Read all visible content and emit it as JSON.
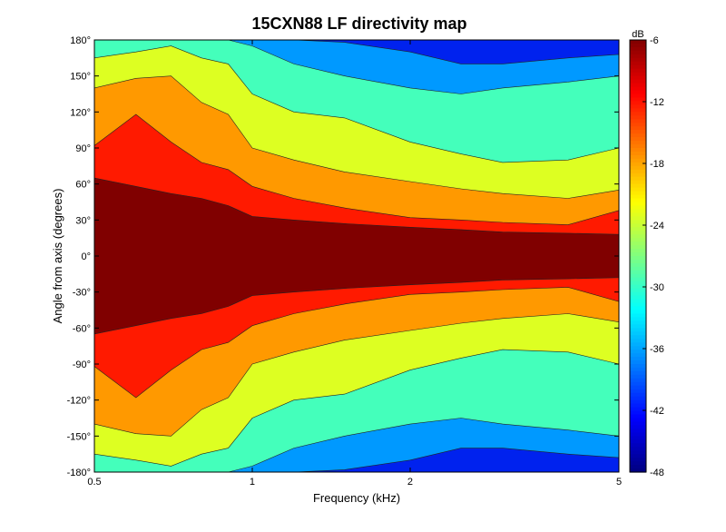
{
  "chart_data": {
    "type": "heatmap",
    "title": "15CXN88 LF directivity map",
    "xlabel": "Frequency (kHz)",
    "ylabel": "Angle from axis (degrees)",
    "x_scale": "log",
    "xlim": [
      0.5,
      5
    ],
    "ylim": [
      -180,
      180
    ],
    "x_ticks": [
      {
        "value": 0.5,
        "label": "0.5"
      },
      {
        "value": 1,
        "label": "1"
      },
      {
        "value": 2,
        "label": "2"
      },
      {
        "value": 5,
        "label": "5"
      }
    ],
    "y_ticks": [
      {
        "value": 180,
        "label": "180°"
      },
      {
        "value": 150,
        "label": "150°"
      },
      {
        "value": 120,
        "label": "120°"
      },
      {
        "value": 90,
        "label": "90°"
      },
      {
        "value": 60,
        "label": "60°"
      },
      {
        "value": 30,
        "label": "30°"
      },
      {
        "value": 0,
        "label": "0°"
      },
      {
        "value": -30,
        "label": "-30°"
      },
      {
        "value": -60,
        "label": "-60°"
      },
      {
        "value": -90,
        "label": "-90°"
      },
      {
        "value": -120,
        "label": "-120°"
      },
      {
        "value": -150,
        "label": "-150°"
      },
      {
        "value": -180,
        "label": "-180°"
      }
    ],
    "colorbar": {
      "unit_label": "dB",
      "range": [
        -48,
        -6
      ],
      "ticks": [
        {
          "value": -6,
          "label": "-6"
        },
        {
          "value": -12,
          "label": "-12"
        },
        {
          "value": -18,
          "label": "-18"
        },
        {
          "value": -24,
          "label": "-24"
        },
        {
          "value": -30,
          "label": "-30"
        },
        {
          "value": -36,
          "label": "-36"
        },
        {
          "value": -42,
          "label": "-42"
        },
        {
          "value": -48,
          "label": "-48"
        }
      ],
      "colormap": "jet"
    },
    "contour_step_db": 6,
    "grid": false,
    "level_bands": [
      {
        "range": [
          -12,
          -6
        ],
        "color": "#800000"
      },
      {
        "range": [
          -18,
          -12
        ],
        "color": "#ff1a00"
      },
      {
        "range": [
          -24,
          -18
        ],
        "color": "#ff9900"
      },
      {
        "range": [
          -30,
          -24
        ],
        "color": "#ddff22"
      },
      {
        "range": [
          -36,
          -30
        ],
        "color": "#44ffbb"
      },
      {
        "range": [
          -42,
          -36
        ],
        "color": "#0099ff"
      },
      {
        "range": [
          -48,
          -42
        ],
        "color": "#0022ee"
      }
    ],
    "contour_boundaries_deg": {
      "freq_khz": [
        0.5,
        0.6,
        0.7,
        0.8,
        0.9,
        1.0,
        1.2,
        1.5,
        2.0,
        2.5,
        3.0,
        4.0,
        5.0
      ],
      "db_-12": [
        65,
        58,
        52,
        48,
        42,
        33,
        30,
        27,
        24,
        22,
        20,
        19,
        18
      ],
      "db_-18": [
        92,
        118,
        95,
        78,
        72,
        58,
        48,
        40,
        32,
        30,
        28,
        26,
        38
      ],
      "db_-24": [
        140,
        148,
        150,
        128,
        118,
        90,
        80,
        70,
        62,
        56,
        52,
        48,
        55
      ],
      "db_-30": [
        165,
        170,
        175,
        165,
        160,
        135,
        120,
        115,
        95,
        85,
        78,
        80,
        90
      ],
      "db_-36": [
        180,
        180,
        180,
        180,
        180,
        175,
        160,
        150,
        140,
        135,
        140,
        145,
        150
      ],
      "db_-42": [
        180,
        180,
        180,
        180,
        180,
        180,
        180,
        178,
        170,
        160,
        160,
        165,
        168
      ]
    }
  }
}
